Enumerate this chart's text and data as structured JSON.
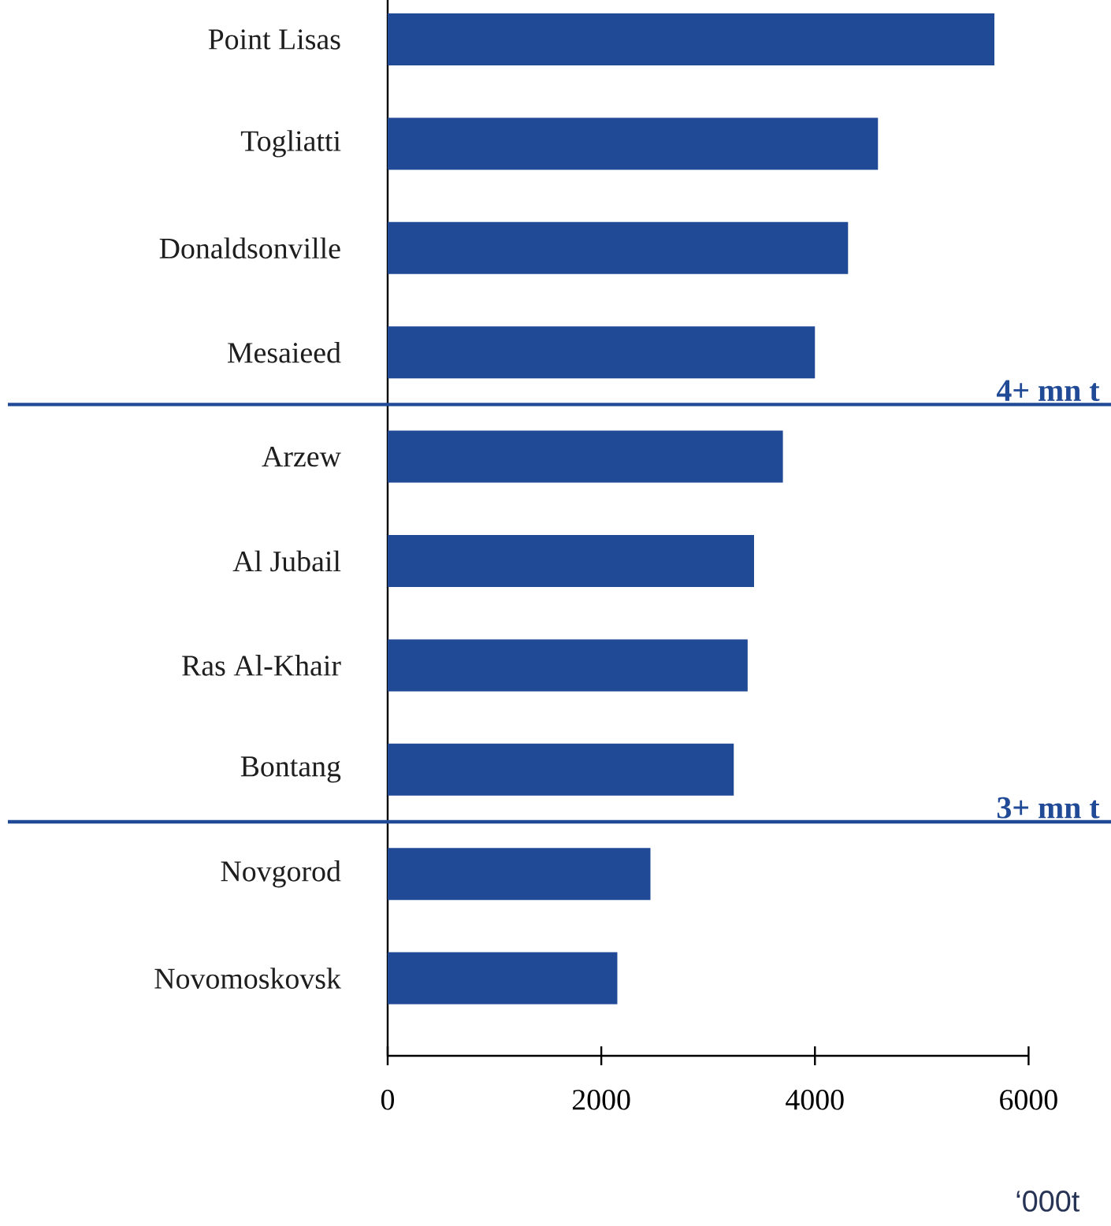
{
  "chart_data": {
    "type": "bar",
    "orientation": "horizontal",
    "categories": [
      "Point Lisas",
      "Togliatti",
      "Donaldsonville",
      "Mesaieed",
      "Arzew",
      "Al Jubail",
      "Ras Al-Khair",
      "Bontang",
      "Novgorod",
      "Novomoskovsk"
    ],
    "values": [
      5680,
      4590,
      4310,
      4000,
      3700,
      3430,
      3370,
      3240,
      2460,
      2150
    ],
    "color": "#214a96",
    "xlim": [
      0,
      6000
    ],
    "xticks": [
      0,
      2000,
      4000,
      6000
    ],
    "xlabel": "‘000t",
    "annotations": [
      "4+ mn t",
      "3+ mn t"
    ]
  }
}
